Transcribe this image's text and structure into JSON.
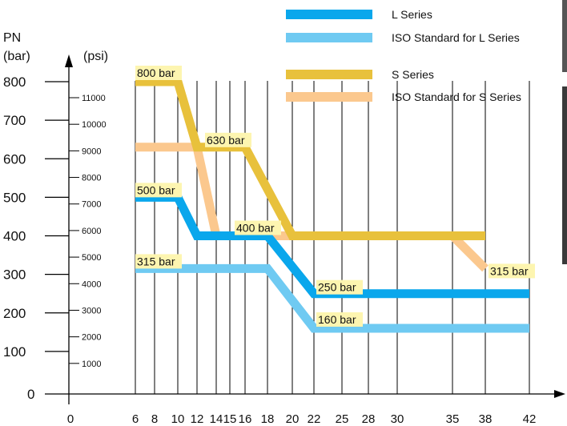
{
  "chart_data": {
    "type": "line",
    "axis_titles": {
      "bar_line1": "PN",
      "bar_line2": "(bar)",
      "psi": "(psi)"
    },
    "x_ticks": [
      "0",
      "6",
      "8",
      "10",
      "12",
      "14",
      "15",
      "16",
      "18",
      "20",
      "22",
      "25",
      "28",
      "30",
      "35",
      "38",
      "42"
    ],
    "x_tick_values": [
      0,
      6,
      8,
      10,
      12,
      14,
      15,
      16,
      18,
      20,
      22,
      25,
      28,
      30,
      35,
      38,
      42
    ],
    "bar_ticks": [
      "0",
      "100",
      "200",
      "300",
      "400",
      "500",
      "600",
      "700",
      "800"
    ],
    "psi_ticks": [
      "1000",
      "2000",
      "3000",
      "4000",
      "5000",
      "6000",
      "7000",
      "8000",
      "9000",
      "10000",
      "11000"
    ],
    "ylim_bar": [
      0,
      800
    ],
    "grid": "vertical lines at each x tick",
    "series": [
      {
        "name": "L Series",
        "color": "#0aa7ec",
        "points": [
          [
            6,
            500
          ],
          [
            10,
            500
          ],
          [
            12,
            400
          ],
          [
            18,
            400
          ],
          [
            22,
            250
          ],
          [
            42,
            250
          ]
        ]
      },
      {
        "name": "ISO Standard for L Series",
        "color": "#6fcaf2",
        "points": [
          [
            6,
            315
          ],
          [
            18,
            315
          ],
          [
            22,
            160
          ],
          [
            42,
            160
          ]
        ]
      },
      {
        "name": "S Series",
        "color": "#e8c13c",
        "points": [
          [
            6,
            800
          ],
          [
            10,
            800
          ],
          [
            12,
            630
          ],
          [
            16,
            630
          ],
          [
            20,
            400
          ],
          [
            38,
            400
          ]
        ]
      },
      {
        "name": "ISO Standard for S Series",
        "color": "#fbc88e",
        "points": [
          [
            6,
            630
          ],
          [
            12,
            630
          ],
          [
            14,
            400
          ],
          [
            35,
            400
          ],
          [
            38,
            315
          ]
        ]
      }
    ],
    "annotations": [
      {
        "text": "800 bar",
        "x": 6,
        "y": 800
      },
      {
        "text": "630 bar",
        "x": 12,
        "y": 630
      },
      {
        "text": "500 bar",
        "x": 6,
        "y": 500
      },
      {
        "text": "400 bar",
        "x": 15,
        "y": 400
      },
      {
        "text": "315 bar",
        "x": 6,
        "y": 315
      },
      {
        "text": "250 bar",
        "x": 22,
        "y": 250
      },
      {
        "text": "160 bar",
        "x": 22,
        "y": 160
      },
      {
        "text": "315 bar",
        "x": 38,
        "y": 315
      }
    ],
    "annotation_fill": "#fdf5b0",
    "legend_position": "top-right"
  }
}
